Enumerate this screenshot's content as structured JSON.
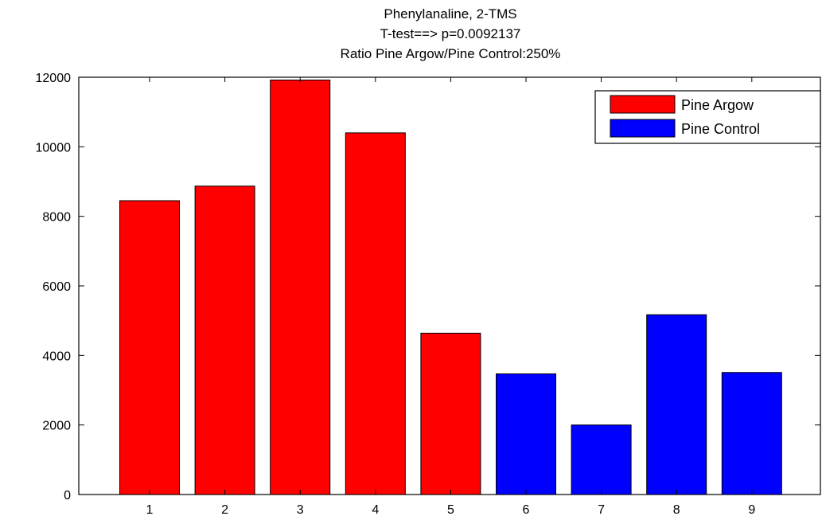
{
  "chart_data": {
    "type": "bar",
    "title_lines": [
      "Phenylanaline, 2-TMS",
      "T-test==> p=0.0092137",
      "Ratio Pine Argow/Pine Control:250%"
    ],
    "xlabel": "",
    "ylabel": "",
    "ylim": [
      0,
      12000
    ],
    "yticks": [
      0,
      2000,
      4000,
      6000,
      8000,
      10000,
      12000
    ],
    "categories": [
      "1",
      "2",
      "3",
      "4",
      "5",
      "6",
      "7",
      "8",
      "9"
    ],
    "values": [
      8450,
      8870,
      11920,
      10400,
      4640,
      3470,
      2000,
      5170,
      3510
    ],
    "series": [
      {
        "name": "Pine Argow",
        "color": "#ff0000",
        "categories": [
          "1",
          "2",
          "3",
          "4",
          "5"
        ]
      },
      {
        "name": "Pine Control",
        "color": "#0000ff",
        "categories": [
          "6",
          "7",
          "8",
          "9"
        ]
      }
    ],
    "legend_position": "top-right",
    "grid": false
  }
}
